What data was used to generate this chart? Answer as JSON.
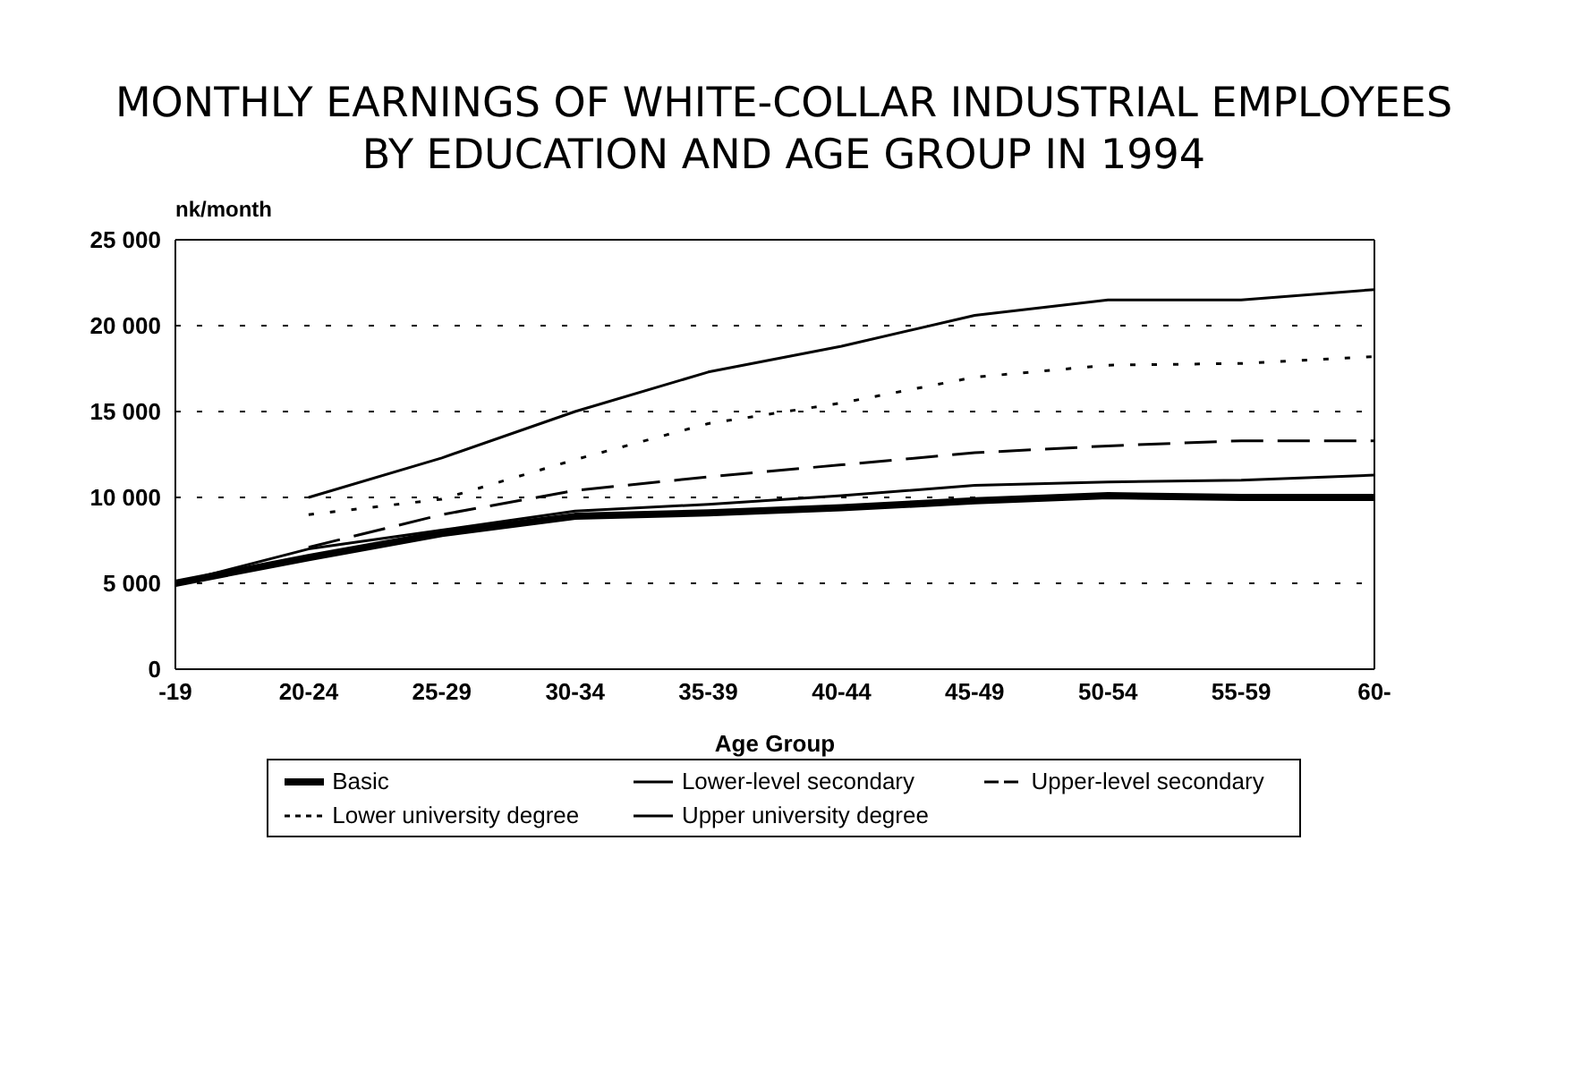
{
  "chart_data": {
    "type": "line",
    "title": "MONTHLY EARNINGS OF WHITE-COLLAR INDUSTRIAL EMPLOYEES\nBY EDUCATION AND AGE GROUP IN 1994",
    "ylabel": "nk/month",
    "xlabel": "Age Group",
    "categories": [
      "-19",
      "20-24",
      "25-29",
      "30-34",
      "35-39",
      "40-44",
      "45-49",
      "50-54",
      "55-59",
      "60-"
    ],
    "series": [
      {
        "name": "Basic",
        "color": "#000000",
        "line_style": "solid",
        "values": [
          5000,
          6500,
          7900,
          8900,
          9100,
          9400,
          9800,
          10100,
          10000,
          10000
        ]
      },
      {
        "name": "Lower-level secondary",
        "color": "#000000",
        "line_style": "solid",
        "values": [
          5000,
          7000,
          8100,
          9200,
          9600,
          10100,
          10700,
          10900,
          11000,
          11300
        ]
      },
      {
        "name": "Upper-level secondary",
        "color": "#000000",
        "line_style": "dashed",
        "values": [
          null,
          7100,
          9000,
          10400,
          11200,
          11900,
          12600,
          13000,
          13300,
          13300
        ]
      },
      {
        "name": "Lower university degree",
        "color": "#000000",
        "line_style": "dotted",
        "values": [
          null,
          9000,
          9900,
          12200,
          14300,
          15500,
          17000,
          17700,
          17800,
          18200
        ]
      },
      {
        "name": "Upper university degree",
        "color": "#000000",
        "line_style": "solid",
        "values": [
          null,
          10000,
          12300,
          15000,
          17300,
          18800,
          20600,
          21500,
          21500,
          22100
        ]
      }
    ],
    "ylim": [
      0,
      25000
    ],
    "yticks": [
      {
        "value": 0,
        "label": "0"
      },
      {
        "value": 5000,
        "label": "5 000"
      },
      {
        "value": 10000,
        "label": "10 000"
      },
      {
        "value": 15000,
        "label": "15 000"
      },
      {
        "value": 20000,
        "label": "20 000"
      },
      {
        "value": 25000,
        "label": "25 000"
      }
    ],
    "grid": "y",
    "legend": "bottom",
    "marker": "none"
  }
}
